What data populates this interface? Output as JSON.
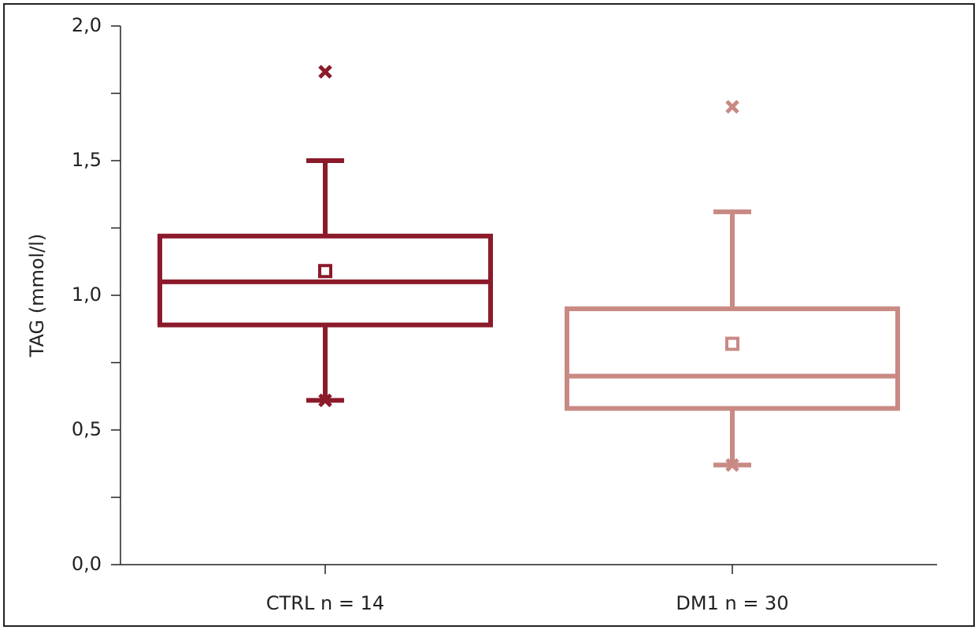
{
  "chart_data": {
    "type": "box",
    "y_label": "TAG (mmol/l)",
    "categories": [
      "CTRL n = 14",
      "DM1 n = 30"
    ],
    "boxes": [
      {
        "color": "#8b1a2b",
        "min": 0.61,
        "q1": 0.89,
        "median": 1.05,
        "q3": 1.22,
        "max": 1.5,
        "mean": 1.09,
        "outliers": [
          1.83,
          0.61
        ]
      },
      {
        "color": "#c98a84",
        "min": 0.37,
        "q1": 0.58,
        "median": 0.7,
        "q3": 0.95,
        "max": 1.31,
        "mean": 0.82,
        "outliers": [
          1.7,
          0.37
        ]
      }
    ],
    "ylim": [
      0,
      2
    ],
    "yticks": [
      {
        "value": 0,
        "label": "0,0"
      },
      {
        "value": 0.5,
        "label": "0,5"
      },
      {
        "value": 1,
        "label": "1,0"
      },
      {
        "value": 1.5,
        "label": "1,5"
      },
      {
        "value": 2,
        "label": "2,0"
      }
    ],
    "minor_yticks": [
      0.25,
      0.75,
      1.25,
      1.75
    ]
  }
}
